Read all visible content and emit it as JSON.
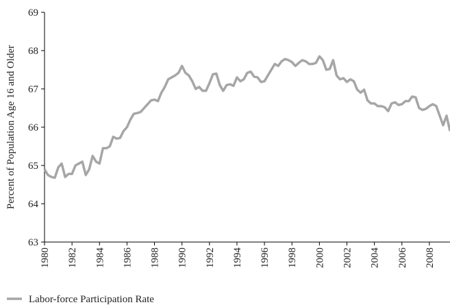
{
  "chart_data": {
    "type": "line",
    "y_label": "Percent of Population Age 16 and Older",
    "x": [
      1980,
      1980.25,
      1980.5,
      1980.75,
      1981,
      1981.25,
      1981.5,
      1981.75,
      1982,
      1982.25,
      1982.5,
      1982.75,
      1983,
      1983.25,
      1983.5,
      1983.75,
      1984,
      1984.25,
      1984.5,
      1984.75,
      1985,
      1985.25,
      1985.5,
      1985.75,
      1986,
      1986.25,
      1986.5,
      1986.75,
      1987,
      1987.25,
      1987.5,
      1987.75,
      1988,
      1988.25,
      1988.5,
      1988.75,
      1989,
      1989.25,
      1989.5,
      1989.75,
      1990,
      1990.25,
      1990.5,
      1990.75,
      1991,
      1991.25,
      1991.5,
      1991.75,
      1992,
      1992.25,
      1992.5,
      1992.75,
      1993,
      1993.25,
      1993.5,
      1993.75,
      1994,
      1994.25,
      1994.5,
      1994.75,
      1995,
      1995.25,
      1995.5,
      1995.75,
      1996,
      1996.25,
      1996.5,
      1996.75,
      1997,
      1997.25,
      1997.5,
      1997.75,
      1998,
      1998.25,
      1998.5,
      1998.75,
      1999,
      1999.25,
      1999.5,
      1999.75,
      2000,
      2000.25,
      2000.5,
      2000.75,
      2001,
      2001.25,
      2001.5,
      2001.75,
      2002,
      2002.25,
      2002.5,
      2002.75,
      2003,
      2003.25,
      2003.5,
      2003.75,
      2004,
      2004.25,
      2004.5,
      2004.75,
      2005,
      2005.25,
      2005.5,
      2005.75,
      2006,
      2006.25,
      2006.5,
      2006.75,
      2007,
      2007.25,
      2007.5,
      2007.75,
      2008,
      2008.25,
      2008.5,
      2008.75,
      2009,
      2009.25,
      2009.5
    ],
    "series": [
      {
        "name": "Labor-force Participation Rate",
        "color": "#a6a6a6",
        "values": [
          64.9,
          64.75,
          64.7,
          64.68,
          64.95,
          65.05,
          64.7,
          64.78,
          64.78,
          65.0,
          65.05,
          65.1,
          64.75,
          64.9,
          65.25,
          65.1,
          65.05,
          65.45,
          65.45,
          65.5,
          65.75,
          65.7,
          65.72,
          65.9,
          66.0,
          66.2,
          66.35,
          66.37,
          66.4,
          66.5,
          66.6,
          66.7,
          66.72,
          66.68,
          66.9,
          67.05,
          67.25,
          67.3,
          67.35,
          67.42,
          67.6,
          67.42,
          67.35,
          67.2,
          67.0,
          67.05,
          66.95,
          66.95,
          67.15,
          67.38,
          67.4,
          67.1,
          66.95,
          67.1,
          67.12,
          67.08,
          67.3,
          67.2,
          67.25,
          67.42,
          67.45,
          67.32,
          67.3,
          67.18,
          67.2,
          67.35,
          67.5,
          67.65,
          67.6,
          67.72,
          67.78,
          67.75,
          67.7,
          67.6,
          67.68,
          67.75,
          67.72,
          67.65,
          67.65,
          67.68,
          67.85,
          67.75,
          67.5,
          67.52,
          67.75,
          67.35,
          67.25,
          67.28,
          67.18,
          67.25,
          67.2,
          66.98,
          66.9,
          66.98,
          66.7,
          66.62,
          66.62,
          66.55,
          66.55,
          66.52,
          66.42,
          66.62,
          66.65,
          66.58,
          66.6,
          66.68,
          66.68,
          66.8,
          66.78,
          66.5,
          66.45,
          66.48,
          66.55,
          66.6,
          66.55,
          66.3,
          66.05,
          66.3,
          65.9
        ]
      }
    ],
    "xlim": [
      1980,
      2009.5
    ],
    "xticks": [
      1980,
      1982,
      1984,
      1986,
      1988,
      1990,
      1992,
      1994,
      1996,
      1998,
      2000,
      2002,
      2004,
      2006,
      2008
    ],
    "ylim": [
      63,
      69
    ],
    "yticks": [
      63,
      64,
      65,
      66,
      67,
      68,
      69
    ],
    "grid": false,
    "legend": "bottom-left"
  }
}
